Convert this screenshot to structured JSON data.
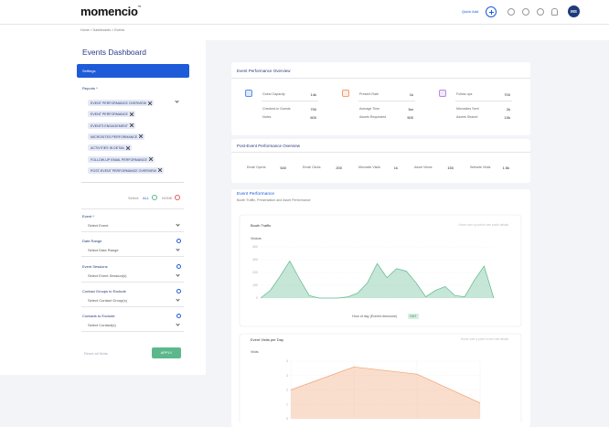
{
  "header": {
    "logo": "momencio",
    "logo_mark": "™",
    "quick_add": "Quick Add",
    "avatar": "MS"
  },
  "breadcrumb": "Home > Dashboards > Events",
  "sidebar": {
    "title": "Events Dashboard",
    "tab": "Settings",
    "reports_label": "Reports *",
    "reports": [
      "EVENT PERFORMANCE OVERVIEW",
      "EVENT PERFORMANCE",
      "EVENTS ENGAGEMENT",
      "MICROSITES PERFORMANCE",
      "ACTIVITIES IN DETAIL",
      "FOLLOW-UP EMAIL PERFORMANCE",
      "POST-EVENT PERFORMANCE OVERVIEW"
    ],
    "select_label": "Select:",
    "all": "ALL",
    "none": "NONE",
    "fields": [
      {
        "label": "Event *",
        "placeholder": "Select Event"
      },
      {
        "label": "Date Range",
        "placeholder": "Select Date Range"
      },
      {
        "label": "Event Sessions",
        "placeholder": "Select Event Session(s)"
      },
      {
        "label": "Contact Groups to Exclude",
        "placeholder": "Select Contact Group(s)"
      },
      {
        "label": "Contacts to Exclude",
        "placeholder": "Select Contact(s)"
      }
    ],
    "reset": "Reset all fields",
    "apply": "APPLY"
  },
  "overview": {
    "title": "Event Performance Overview",
    "groups": [
      {
        "items": [
          {
            "label": "Guest Capacity",
            "value": "14k"
          },
          {
            "label": "Checked-in Guests",
            "value": "790"
          },
          {
            "label": "Notes",
            "value": "600"
          }
        ]
      },
      {
        "items": [
          {
            "label": "Present Rate",
            "value": "1k"
          },
          {
            "label": "Average Time",
            "value": "5m"
          },
          {
            "label": "Assets Requested",
            "value": "500"
          }
        ]
      },
      {
        "items": [
          {
            "label": "Follow-ups",
            "value": "700"
          },
          {
            "label": "Microsites Sent",
            "value": "2k"
          },
          {
            "label": "Assets Shared",
            "value": "10k"
          }
        ]
      }
    ]
  },
  "post_event": {
    "title": "Post-Event Performance Overview",
    "items": [
      {
        "label": "Email Opens",
        "value": "540"
      },
      {
        "label": "Email Clicks",
        "value": "200"
      },
      {
        "label": "Microsite Visits",
        "value": "1k"
      },
      {
        "label": "Asset Views",
        "value": "150"
      },
      {
        "label": "Website Visits",
        "value": "1.5k"
      }
    ]
  },
  "performance": {
    "title": "Event Performance",
    "subtitle": "Booth Traffic, Presentation and Asset Performance",
    "booth": {
      "type": "area",
      "title": "Booth Traffic",
      "note": "Hover over a point to see booth details",
      "y_label": "Visitors",
      "x_label": "Hour of day (Event's timezone)",
      "timezone": "GMT",
      "color": "#5cb88c",
      "values": [
        0,
        60,
        170,
        290,
        150,
        20,
        0,
        0,
        0,
        10,
        40,
        120,
        270,
        160,
        230,
        210,
        120,
        10,
        60,
        90,
        20,
        10,
        140,
        250,
        0
      ],
      "ylim": [
        0,
        400
      ],
      "yticks": [
        0,
        100,
        200,
        300,
        400
      ]
    },
    "visits": {
      "type": "area",
      "title": "Event Visits per Day",
      "note": "Hover over a point to see visit details",
      "y_label": "Visits",
      "color": "#f0a070",
      "values": [
        2.0,
        3.6,
        3.1,
        1.1
      ],
      "ylim": [
        0,
        4
      ],
      "yticks": [
        0,
        1,
        2,
        3,
        4
      ]
    }
  }
}
